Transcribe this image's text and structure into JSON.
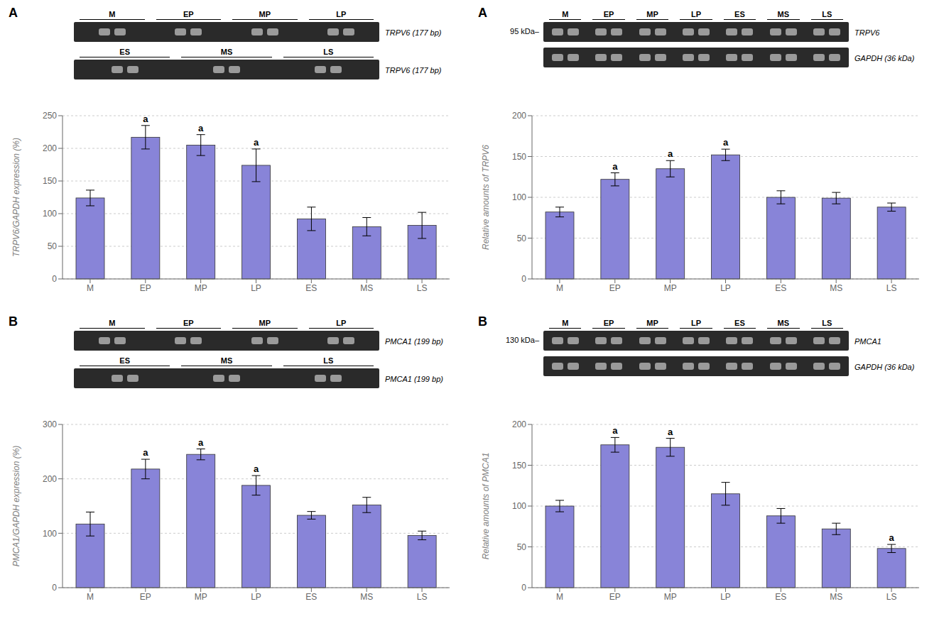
{
  "chart_data": [
    {
      "type": "bar",
      "title": "A",
      "categories": [
        "M",
        "EP",
        "MP",
        "LP",
        "ES",
        "MS",
        "LS"
      ],
      "values": [
        124,
        217,
        205,
        174,
        92,
        80,
        82
      ],
      "errors": [
        12,
        18,
        16,
        25,
        18,
        14,
        20
      ],
      "sig_markers": [
        null,
        "a",
        "a",
        "a",
        null,
        null,
        null
      ],
      "ylabel": "TRPV6/GAPDH expression (%)",
      "ylim": [
        0,
        250
      ],
      "yticks": [
        0,
        50,
        100,
        150,
        200,
        250
      ],
      "color": "#8884d8",
      "annotations": [
        {
          "groups": [
            "M",
            "EP",
            "MP",
            "LP"
          ],
          "label": "TRPV6 (177 bp)"
        },
        {
          "groups": [
            "ES",
            "MS",
            "LS"
          ],
          "label": "TRPV6 (177 bp)"
        }
      ]
    },
    {
      "type": "bar",
      "title": "A",
      "categories": [
        "M",
        "EP",
        "MP",
        "LP",
        "ES",
        "MS",
        "LS"
      ],
      "values": [
        82,
        122,
        135,
        152,
        100,
        99,
        88
      ],
      "errors": [
        6,
        8,
        10,
        7,
        8,
        7,
        5
      ],
      "sig_markers": [
        null,
        "a",
        "a",
        "a",
        null,
        null,
        null
      ],
      "ylabel": "Relative amounts of TRPV6",
      "ylim": [
        0,
        200
      ],
      "yticks": [
        0,
        50,
        100,
        150,
        200
      ],
      "color": "#8884d8",
      "annotations": [
        {
          "left_label": "95 kDa–",
          "groups": [
            "M",
            "EP",
            "MP",
            "LP",
            "ES",
            "MS",
            "LS"
          ],
          "label": "TRPV6"
        },
        {
          "label": "GAPDH (36 kDa)"
        }
      ]
    },
    {
      "type": "bar",
      "title": "B",
      "categories": [
        "M",
        "EP",
        "MP",
        "LP",
        "ES",
        "MS",
        "LS"
      ],
      "values": [
        117,
        218,
        245,
        188,
        133,
        152,
        96
      ],
      "errors": [
        22,
        18,
        10,
        18,
        7,
        14,
        8
      ],
      "sig_markers": [
        null,
        "a",
        "a",
        "a",
        null,
        null,
        null
      ],
      "ylabel": "PMCA1/GAPDH expression (%)",
      "ylim": [
        0,
        300
      ],
      "yticks": [
        0,
        100,
        200,
        300
      ],
      "color": "#8884d8",
      "annotations": [
        {
          "groups": [
            "M",
            "EP",
            "MP",
            "LP"
          ],
          "label": "PMCA1 (199 bp)"
        },
        {
          "groups": [
            "ES",
            "MS",
            "LS"
          ],
          "label": "PMCA1 (199 bp)"
        }
      ]
    },
    {
      "type": "bar",
      "title": "B",
      "categories": [
        "M",
        "EP",
        "MP",
        "LP",
        "ES",
        "MS",
        "LS"
      ],
      "values": [
        100,
        175,
        172,
        115,
        88,
        72,
        48
      ],
      "errors": [
        7,
        9,
        11,
        14,
        9,
        7,
        5
      ],
      "sig_markers": [
        null,
        "a",
        "a",
        null,
        null,
        null,
        "a"
      ],
      "ylabel": "Relative amounts of PMCA1",
      "ylim": [
        0,
        200
      ],
      "yticks": [
        0,
        50,
        100,
        150,
        200
      ],
      "color": "#8884d8",
      "annotations": [
        {
          "left_label": "130 kDa–",
          "groups": [
            "M",
            "EP",
            "MP",
            "LP",
            "ES",
            "MS",
            "LS"
          ],
          "label": "PMCA1"
        },
        {
          "label": "GAPDH (36 kDa)"
        }
      ]
    }
  ]
}
